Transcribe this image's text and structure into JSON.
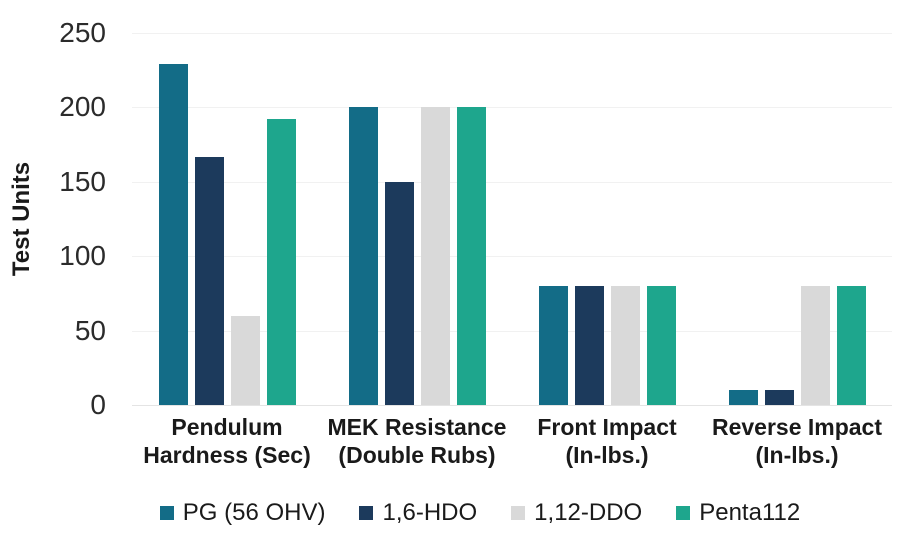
{
  "chart_data": {
    "type": "bar",
    "title": "",
    "ylabel": "Test Units",
    "xlabel": "",
    "ylim": [
      0,
      250
    ],
    "yticks": [
      0,
      50,
      100,
      150,
      200,
      250
    ],
    "grid": "horizontal, faint",
    "legend_position": "bottom",
    "categories": [
      [
        "Pendulum",
        "Hardness (Sec)"
      ],
      [
        "MEK Resistance",
        "(Double Rubs)"
      ],
      [
        "Front Impact",
        "(In-lbs.)"
      ],
      [
        "Reverse Impact",
        "(In-lbs.)"
      ]
    ],
    "series": [
      {
        "name": "PG (56 OHV)",
        "color": "#136C87",
        "values": [
          229,
          200,
          80,
          10
        ]
      },
      {
        "name": "1,6-HDO",
        "color": "#1C3A5C",
        "values": [
          167,
          150,
          80,
          10
        ]
      },
      {
        "name": "1,12-DDO",
        "color": "#D9D9D9",
        "values": [
          60,
          200,
          80,
          80
        ]
      },
      {
        "name": "Penta112",
        "color": "#1EA68D",
        "values": [
          192,
          200,
          80,
          80
        ]
      }
    ]
  },
  "style": {
    "background": "#FFFFFF",
    "gridline_color": "#F1F1F1",
    "axis_line_color": "#E4E4E4",
    "text_color": "#1A1A1A"
  }
}
